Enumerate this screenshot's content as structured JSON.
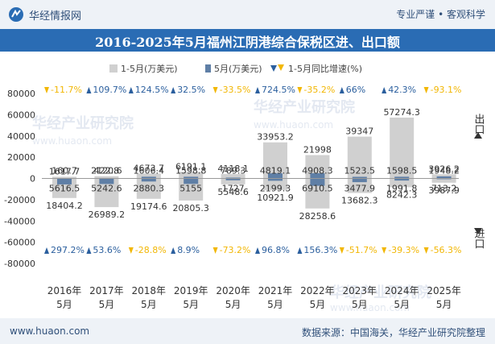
{
  "header": {
    "brand": "华经情报网",
    "slogan": "专业严谨 • 客观科学"
  },
  "title": "2016-2025年5月福州江阴港综合保税区进、出口额",
  "legend": {
    "ytd": "1-5月(万美元)",
    "month": "5月(万美元)",
    "yoy": "1-5月同比增速(%)"
  },
  "side_labels": {
    "export": "出口",
    "import": "进口"
  },
  "watermark": {
    "line1": "华经产业研究院",
    "line2": "www.huaon.com"
  },
  "footer": {
    "website": "www.huaon.com",
    "source": "数据来源：中国海关，华经产业研究院整理"
  },
  "colors": {
    "ytd_bar": "#d0d0d0",
    "month_bar": "#5f7fa6",
    "up": "#2b5f9e",
    "down": "#f2b705"
  },
  "chart_data": {
    "type": "bar",
    "categories": [
      "2016年\n5月",
      "2017年\n5月",
      "2018年\n5月",
      "2019年\n5月",
      "2020年\n5月",
      "2021年\n5月",
      "2022年\n5月",
      "2023年\n5月",
      "2024年\n5月",
      "2025年\n5月"
    ],
    "ylim": [
      -80000,
      80000
    ],
    "yticks": [
      "-80000",
      "-60000",
      "-40000",
      "-20000",
      "0",
      "20000",
      "40000",
      "60000",
      "80000"
    ],
    "series": [
      {
        "name": "1-5月(万美元)",
        "direction": "export",
        "values": [
          1617.7,
          2120.6,
          4673.7,
          6191.1,
          4118.1,
          33953.2,
          21998,
          39347,
          57274.3,
          3926.2
        ]
      },
      {
        "name": "5月(万美元)",
        "direction": "export",
        "values": [
          160.7,
          422.8,
          1606.4,
          1598.8,
          789.3,
          4819.1,
          4908.3,
          1523.5,
          1598.5,
          1948.2
        ]
      },
      {
        "name": "1-5月(万美元)",
        "direction": "import",
        "values": [
          18404.2,
          26989.2,
          19174.6,
          20805.3,
          5548.6,
          10921.9,
          28258.6,
          13682.3,
          8242.3,
          3987.9
        ]
      },
      {
        "name": "5月(万美元)",
        "direction": "import",
        "values": [
          5616.5,
          5242.6,
          2880.3,
          5155,
          1727,
          2199.3,
          6910.5,
          3477.9,
          1991.8,
          713.2
        ]
      }
    ],
    "yoy_export": [
      -11.7,
      109.7,
      124.5,
      32.5,
      -33.5,
      724.5,
      -35.2,
      66,
      42.3,
      -93.1
    ],
    "yoy_import": [
      297.2,
      53.6,
      -28.8,
      8.9,
      -73.2,
      96.8,
      156.3,
      -51.7,
      -39.3,
      -56.3
    ],
    "grid": false,
    "legend_position": "top"
  }
}
